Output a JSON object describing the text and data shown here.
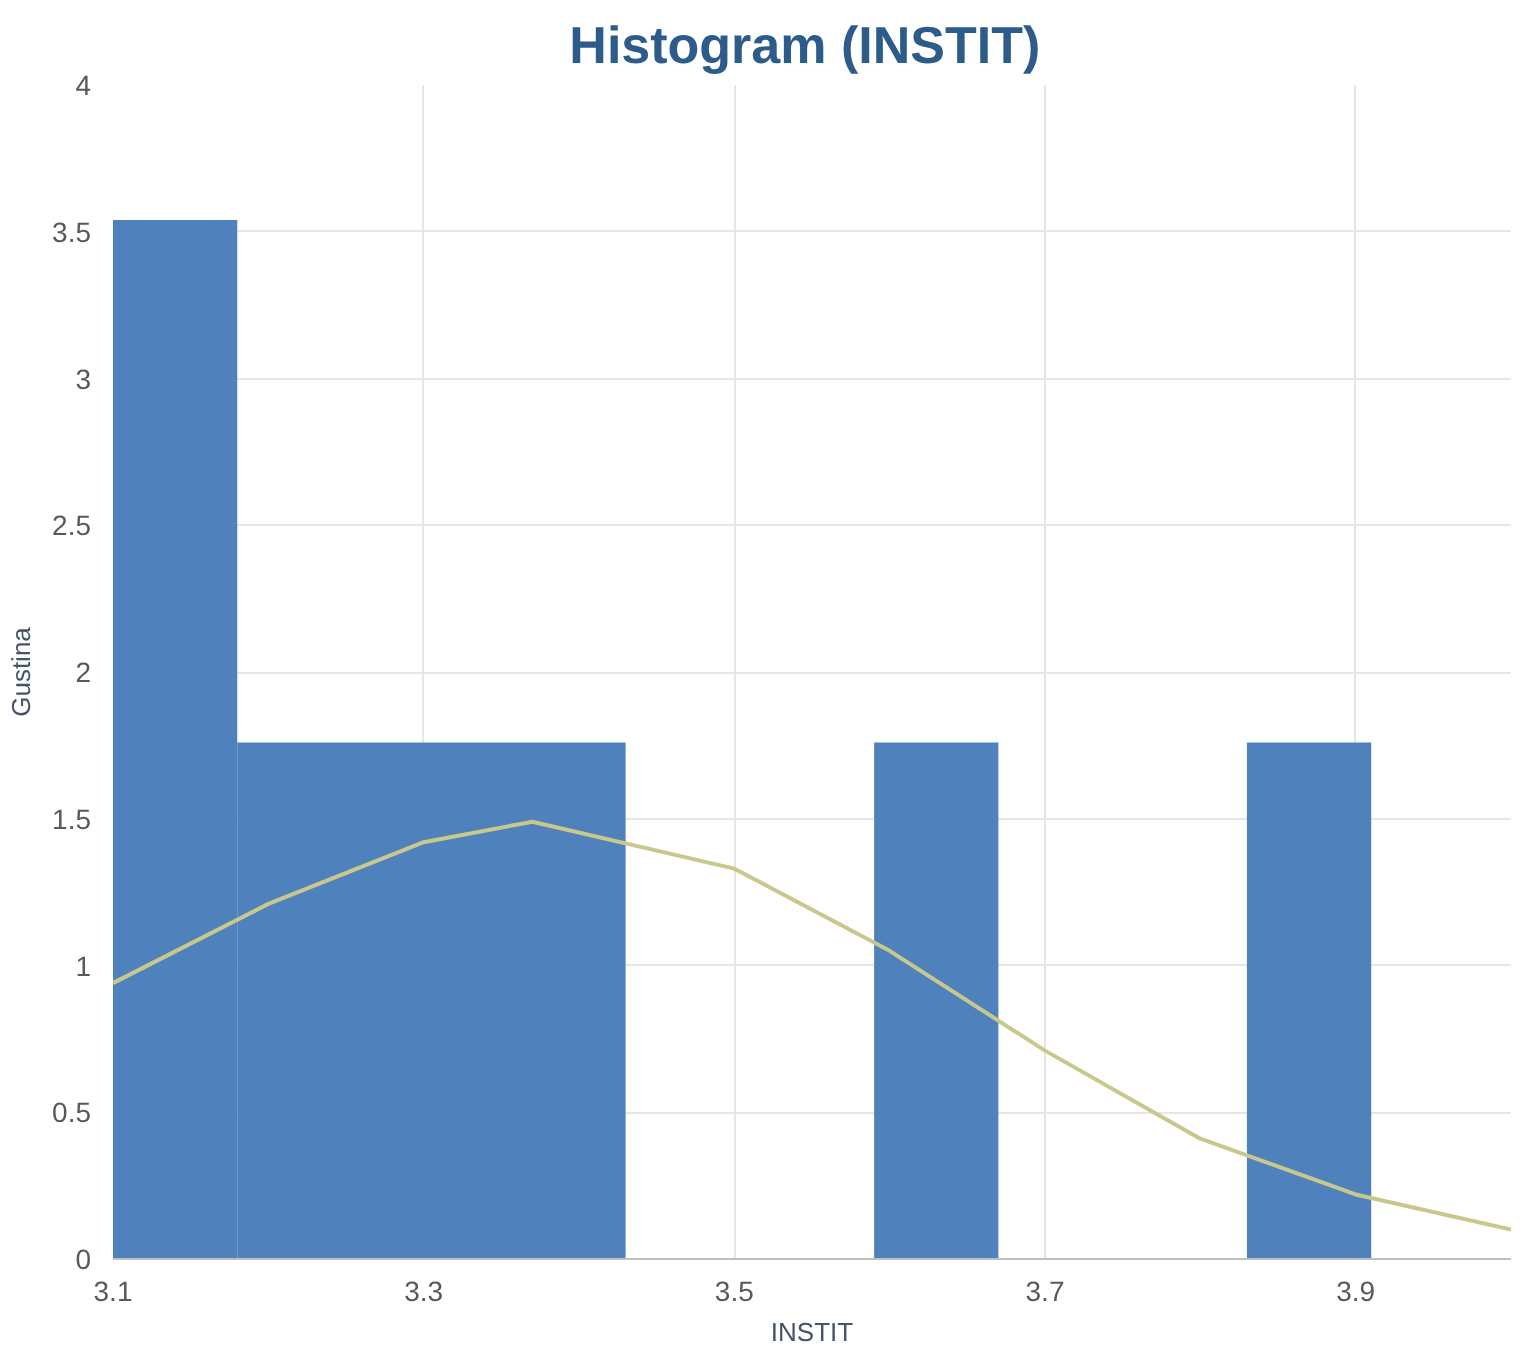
{
  "chart_data": {
    "type": "histogram",
    "title": "Histogram  (INSTIT)",
    "xlabel": "INSTIT",
    "ylabel": "Gustina",
    "xlim": [
      3.1,
      4.0
    ],
    "xticks": [
      3.1,
      3.3,
      3.5,
      3.7,
      3.9
    ],
    "ylim": [
      0,
      4
    ],
    "yticks": [
      0,
      0.5,
      1,
      1.5,
      2,
      2.5,
      3,
      3.5,
      4
    ],
    "grid": true,
    "series": [
      {
        "color": "#4f81bd",
        "bins": [
          3.1,
          3.18,
          3.43,
          3.59,
          3.67,
          3.83,
          3.91
        ],
        "values": [
          3.54,
          1.76,
          0,
          1.76,
          0,
          1.76
        ]
      },
      {
        "type": "line",
        "color": "#c8c88c",
        "x": [
          3.1,
          3.2,
          3.3,
          3.37,
          3.5,
          3.6,
          3.7,
          3.8,
          3.9,
          4.0
        ],
        "values": [
          0.94,
          1.21,
          1.42,
          1.49,
          1.33,
          1.05,
          0.71,
          0.41,
          0.22,
          0.1
        ]
      }
    ]
  }
}
